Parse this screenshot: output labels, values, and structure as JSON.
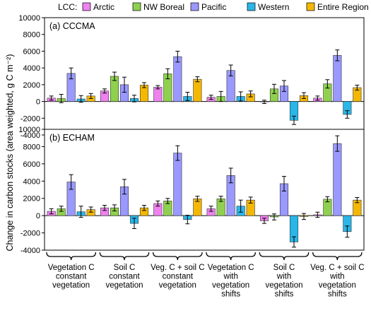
{
  "legend_title": "LCC:",
  "ylabel": "Change in carbon stocks (area weighted, g C m⁻²)",
  "categories": [
    "Vegetation C\nconstant\nvegetation",
    "Soil C\nconstant\nvegetation",
    "Veg. C + soil C\nconstant\nvegetation",
    "Vegetation C\nwith\nvegetation\nshifts",
    "Soil C\nwith\nvegetation\nshifts",
    "Veg. C + soil C\nwith\nvegetation\nshifts"
  ],
  "series_colors": [
    "#ee82ee",
    "#8fd14f",
    "#9999ff",
    "#29b6e8",
    "#f5b800"
  ],
  "chart_data": [
    {
      "type": "bar",
      "title": "(a) CCCMA",
      "ylim": [
        -4000,
        10000
      ],
      "yticks": [
        -4000,
        -2000,
        0,
        2000,
        4000,
        6000,
        8000,
        10000
      ],
      "series": [
        {
          "name": "Arctic",
          "values": [
            400,
            1250,
            1700,
            500,
            -50,
            400
          ],
          "errors": [
            250,
            250,
            200,
            250,
            200,
            250
          ]
        },
        {
          "name": "NW Boreal",
          "values": [
            350,
            3000,
            3300,
            600,
            1500,
            2100
          ],
          "errors": [
            500,
            500,
            600,
            600,
            550,
            500
          ]
        },
        {
          "name": "Pacific",
          "values": [
            3350,
            2000,
            5350,
            3700,
            1850,
            5500
          ],
          "errors": [
            650,
            900,
            650,
            650,
            650,
            650
          ]
        },
        {
          "name": "Western",
          "values": [
            300,
            350,
            600,
            600,
            -2250,
            -1550
          ],
          "errors": [
            400,
            400,
            500,
            550,
            500,
            450
          ]
        },
        {
          "name": "Entire Region",
          "values": [
            650,
            1950,
            2650,
            900,
            700,
            1650
          ],
          "errors": [
            300,
            300,
            300,
            350,
            350,
            300
          ]
        }
      ]
    },
    {
      "type": "bar",
      "title": "(b) ECHAM",
      "ylim": [
        -4000,
        10000
      ],
      "yticks": [
        -4000,
        -2000,
        0,
        2000,
        4000,
        6000,
        8000,
        10000
      ],
      "series": [
        {
          "name": "Arctic",
          "values": [
            500,
            900,
            1400,
            800,
            -600,
            100
          ],
          "errors": [
            300,
            300,
            300,
            300,
            300,
            300
          ]
        },
        {
          "name": "NW Boreal",
          "values": [
            800,
            900,
            1700,
            1950,
            -150,
            1900
          ],
          "errors": [
            300,
            350,
            300,
            300,
            350,
            300
          ]
        },
        {
          "name": "Pacific",
          "values": [
            3900,
            3350,
            7250,
            4650,
            3700,
            8350
          ],
          "errors": [
            850,
            850,
            850,
            850,
            850,
            900
          ]
        },
        {
          "name": "Western",
          "values": [
            450,
            -900,
            -450,
            1100,
            -3050,
            -1850
          ],
          "errors": [
            650,
            600,
            500,
            700,
            600,
            650
          ]
        },
        {
          "name": "Entire Region",
          "values": [
            700,
            900,
            1950,
            1800,
            -100,
            1800
          ],
          "errors": [
            300,
            300,
            300,
            350,
            350,
            300
          ]
        }
      ]
    }
  ]
}
